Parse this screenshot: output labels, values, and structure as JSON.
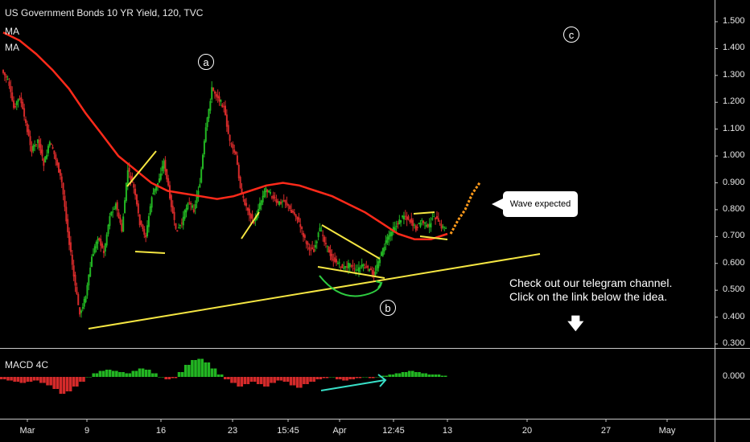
{
  "legend": {
    "title": "US Government Bonds 10 YR Yield, 120, TVC",
    "ma1": "MA",
    "ma2": "MA"
  },
  "macd_label": "MACD 4C",
  "annotations": {
    "wave_a": "a",
    "wave_b": "b",
    "wave_c": "c",
    "bubble": "Wave expected",
    "note_line1": "Check out our telegram channel.",
    "note_line2": "Click on the link below the idea.",
    "arrow": "down-arrow-icon"
  },
  "colors": {
    "background": "#000000",
    "up_candle": "#22b522",
    "down_candle": "#d42a2a",
    "ma_line": "#ff2a1a",
    "trendline": "#f5e642",
    "projection": "#ff9a1a",
    "macd_pos": "#22b522",
    "macd_neg": "#d42a2a",
    "divergence": "#38e0c8",
    "curve": "#2ecc40"
  },
  "chart_data": {
    "type": "line",
    "title": "US Government Bonds 10 YR Yield, 120, TVC",
    "y_ticks": [
      "1.500",
      "1.400",
      "1.300",
      "1.200",
      "1.100",
      "1.000",
      "0.900",
      "0.800",
      "0.700",
      "0.600",
      "0.500",
      "0.400",
      "0.300"
    ],
    "macd_y_ticks": [
      "0.000"
    ],
    "x_ticks": [
      "Mar",
      "9",
      "16",
      "23",
      "15:45",
      "Apr",
      "12:45",
      "13",
      "20",
      "27",
      "May"
    ],
    "ylim": [
      0.3,
      1.5
    ],
    "series": [
      {
        "values": [
          1.32,
          1.28,
          1.18,
          1.22,
          1.12,
          1.02,
          1.06,
          0.97,
          1.05,
          0.99,
          0.9,
          0.72,
          0.55,
          0.41,
          0.48,
          0.62,
          0.7,
          0.64,
          0.78,
          0.82,
          0.72,
          0.95,
          0.88,
          0.75,
          0.7,
          0.85,
          0.9,
          0.98,
          0.85,
          0.72,
          0.75,
          0.83,
          0.8,
          0.9,
          1.1,
          1.25,
          1.22,
          1.18,
          1.05,
          1.0,
          0.85,
          0.8,
          0.75,
          0.82,
          0.88,
          0.85,
          0.82,
          0.84,
          0.8,
          0.78,
          0.72,
          0.66,
          0.65,
          0.73,
          0.67,
          0.62,
          0.6,
          0.58,
          0.6,
          0.57,
          0.59,
          0.58,
          0.56,
          0.62,
          0.68,
          0.72,
          0.75,
          0.78,
          0.76,
          0.73,
          0.76,
          0.73,
          0.78,
          0.74,
          0.73
        ]
      },
      {
        "values": [
          1.46,
          1.43,
          1.38,
          1.32,
          1.25,
          1.16,
          1.08,
          1.0,
          0.95,
          0.9,
          0.87,
          0.86,
          0.85,
          0.84,
          0.85,
          0.87,
          0.89,
          0.9,
          0.89,
          0.87,
          0.85,
          0.82,
          0.79,
          0.75,
          0.71,
          0.69,
          0.69,
          0.71
        ]
      }
    ],
    "projection": [
      0.71,
      0.76,
      0.8,
      0.86,
      0.9
    ],
    "macd": [
      -0.02,
      -0.03,
      -0.04,
      -0.05,
      -0.04,
      -0.03,
      -0.05,
      -0.07,
      -0.1,
      -0.14,
      -0.12,
      -0.08,
      -0.04,
      0.0,
      0.03,
      0.05,
      0.06,
      0.05,
      0.04,
      0.03,
      0.05,
      0.07,
      0.06,
      0.03,
      0.0,
      -0.02,
      -0.01,
      0.04,
      0.1,
      0.14,
      0.15,
      0.12,
      0.07,
      0.02,
      -0.02,
      -0.05,
      -0.08,
      -0.06,
      -0.04,
      -0.06,
      -0.08,
      -0.05,
      -0.03,
      -0.04,
      -0.07,
      -0.09,
      -0.06,
      -0.04,
      -0.02,
      -0.01,
      0.0,
      -0.02,
      -0.03,
      -0.02,
      -0.01,
      0.0,
      -0.01,
      0.0,
      0.01,
      0.02,
      0.03,
      0.04,
      0.05,
      0.04,
      0.03,
      0.02,
      0.02,
      0.01
    ]
  }
}
